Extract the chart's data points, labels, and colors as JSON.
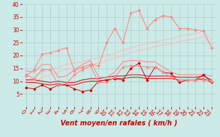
{
  "background_color": "#cceae7",
  "grid_color": "#aacfcc",
  "xlabel": "Vent moyen/en rafales ( km/h )",
  "xlabel_color": "#cc0000",
  "xlabel_fontsize": 7,
  "tick_color": "#cc0000",
  "tick_fontsize": 5.5,
  "xlim": [
    -0.5,
    23.5
  ],
  "ylim": [
    0,
    40
  ],
  "yticks": [
    5,
    10,
    15,
    20,
    25,
    30,
    35,
    40
  ],
  "xticks": [
    0,
    1,
    2,
    3,
    4,
    5,
    6,
    7,
    8,
    9,
    10,
    11,
    12,
    13,
    14,
    15,
    16,
    17,
    18,
    19,
    20,
    21,
    22,
    23
  ],
  "series": [
    {
      "x": [
        0,
        1,
        2,
        3,
        4,
        5,
        6,
        7,
        8,
        9,
        10,
        11,
        12,
        13,
        14,
        15,
        16,
        17,
        18,
        19,
        20,
        21,
        22,
        23
      ],
      "y": [
        7.5,
        7.0,
        8.5,
        7.0,
        8.5,
        8.5,
        7.0,
        6.0,
        6.5,
        10.0,
        10.5,
        11.0,
        10.5,
        15.0,
        17.0,
        10.5,
        15.5,
        13.5,
        13.0,
        9.5,
        10.5,
        10.5,
        12.5,
        9.5
      ],
      "color": "#cc0000",
      "linewidth": 0.7,
      "marker": "D",
      "markersize": 1.5,
      "zorder": 5
    },
    {
      "x": [
        0,
        1,
        2,
        3,
        4,
        5,
        6,
        7,
        8,
        9,
        10,
        11,
        12,
        13,
        14,
        15,
        16,
        17,
        18,
        19,
        20,
        21,
        22,
        23
      ],
      "y": [
        9.5,
        9.5,
        9.0,
        8.5,
        9.0,
        8.5,
        8.5,
        9.5,
        10.0,
        10.0,
        10.5,
        11.0,
        11.0,
        11.5,
        11.5,
        11.0,
        11.0,
        11.0,
        11.0,
        10.5,
        10.5,
        10.5,
        11.0,
        9.5
      ],
      "color": "#cc0000",
      "linewidth": 0.7,
      "marker": null,
      "markersize": 0,
      "zorder": 4
    },
    {
      "x": [
        0,
        1,
        2,
        3,
        4,
        5,
        6,
        7,
        8,
        9,
        10,
        11,
        12,
        13,
        14,
        15,
        16,
        17,
        18,
        19,
        20,
        21,
        22,
        23
      ],
      "y": [
        10.5,
        10.5,
        10.0,
        9.5,
        10.0,
        9.5,
        9.5,
        10.5,
        11.0,
        11.0,
        11.5,
        12.0,
        12.0,
        12.5,
        12.5,
        12.0,
        12.0,
        12.0,
        12.0,
        11.5,
        11.5,
        11.5,
        12.0,
        10.5
      ],
      "color": "#cc0000",
      "linewidth": 0.7,
      "marker": null,
      "markersize": 0,
      "zorder": 4
    },
    {
      "x": [
        0,
        1,
        2,
        3,
        4,
        5,
        6,
        7,
        8,
        9,
        10,
        11,
        12,
        13,
        14,
        15,
        16,
        17,
        18,
        19,
        20,
        21,
        22,
        23
      ],
      "y": [
        12.5,
        11.0,
        14.5,
        14.5,
        8.5,
        9.0,
        12.5,
        14.5,
        16.0,
        9.5,
        9.5,
        11.5,
        15.5,
        16.0,
        16.0,
        15.5,
        15.5,
        13.5,
        11.5,
        10.5,
        10.5,
        10.5,
        10.5,
        10.0
      ],
      "color": "#ff8888",
      "linewidth": 0.8,
      "marker": "D",
      "markersize": 1.5,
      "zorder": 5
    },
    {
      "x": [
        0,
        1,
        2,
        3,
        4,
        5,
        6,
        7,
        8,
        9,
        10,
        11,
        12,
        13,
        14,
        15,
        16,
        17,
        18,
        19,
        20,
        21,
        22,
        23
      ],
      "y": [
        14.0,
        13.5,
        16.5,
        16.5,
        11.5,
        12.0,
        14.5,
        16.5,
        18.0,
        11.5,
        11.5,
        13.5,
        17.5,
        18.0,
        18.0,
        17.5,
        17.5,
        15.5,
        13.5,
        12.5,
        12.5,
        12.5,
        12.5,
        12.0
      ],
      "color": "#ff8888",
      "linewidth": 0.8,
      "marker": null,
      "markersize": 0,
      "zorder": 4
    },
    {
      "x": [
        0,
        1,
        2,
        3,
        4,
        5,
        6,
        7,
        8,
        9,
        10,
        11,
        12,
        13,
        14,
        15,
        16,
        17,
        18,
        19,
        20,
        21,
        22,
        23
      ],
      "y": [
        8.0,
        9.5,
        11.5,
        12.5,
        13.5,
        14.5,
        15.0,
        15.5,
        16.5,
        17.0,
        18.0,
        19.0,
        20.0,
        21.0,
        22.0,
        22.5,
        23.5,
        24.0,
        24.5,
        25.5,
        26.0,
        26.5,
        27.5,
        24.0
      ],
      "color": "#ffbbbb",
      "linewidth": 0.8,
      "marker": null,
      "markersize": 0,
      "zorder": 3
    },
    {
      "x": [
        0,
        1,
        2,
        3,
        4,
        5,
        6,
        7,
        8,
        9,
        10,
        11,
        12,
        13,
        14,
        15,
        16,
        17,
        18,
        19,
        20,
        21,
        22,
        23
      ],
      "y": [
        10.0,
        11.5,
        13.5,
        14.5,
        15.5,
        16.5,
        17.0,
        17.5,
        18.5,
        19.0,
        20.0,
        21.0,
        22.0,
        23.0,
        24.0,
        24.5,
        25.5,
        26.0,
        26.5,
        27.5,
        28.0,
        28.5,
        29.5,
        26.0
      ],
      "color": "#ffbbbb",
      "linewidth": 0.8,
      "marker": null,
      "markersize": 0,
      "zorder": 3
    },
    {
      "x": [
        0,
        1,
        2,
        3,
        4,
        5,
        6,
        7,
        8,
        9,
        10,
        11,
        12,
        13,
        14,
        15,
        16,
        17,
        18,
        19,
        20,
        21,
        22,
        23
      ],
      "y": [
        12.0,
        14.5,
        20.5,
        21.0,
        22.0,
        23.0,
        14.0,
        15.5,
        16.5,
        16.0,
        25.0,
        30.5,
        25.0,
        36.5,
        37.5,
        30.5,
        34.0,
        35.5,
        35.0,
        30.5,
        30.5,
        30.0,
        29.5,
        23.0
      ],
      "color": "#ff8888",
      "linewidth": 0.8,
      "marker": "D",
      "markersize": 1.5,
      "zorder": 5
    }
  ]
}
